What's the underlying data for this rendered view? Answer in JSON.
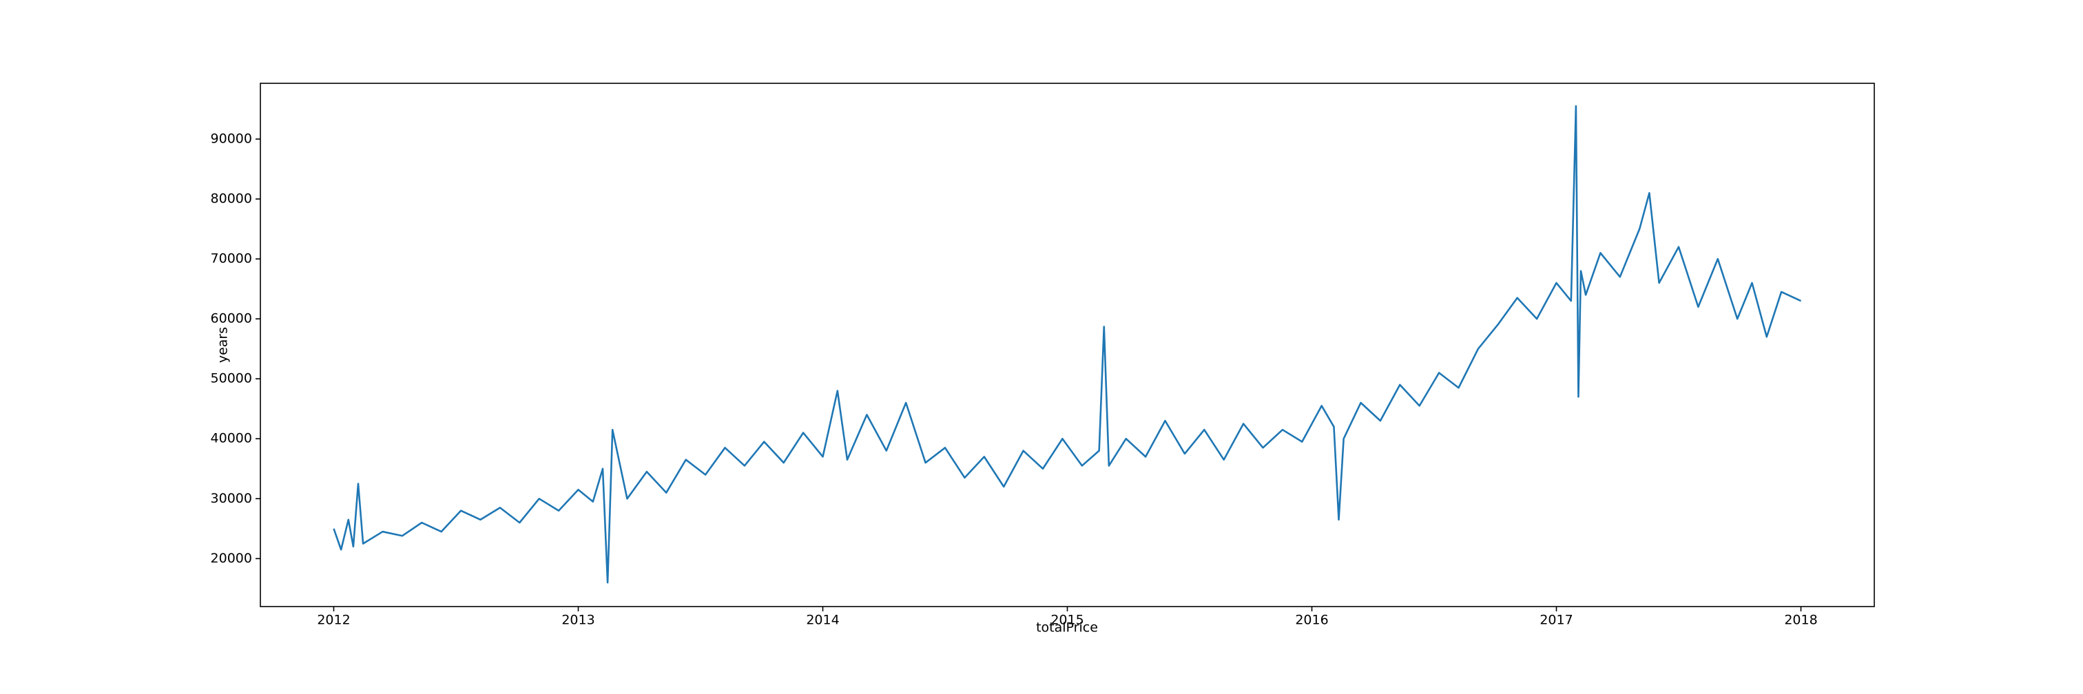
{
  "chart_data": {
    "type": "line",
    "xlabel": "totalPrice",
    "ylabel": "years",
    "x": [
      2012.0,
      2012.03,
      2012.06,
      2012.08,
      2012.1,
      2012.12,
      2012.2,
      2012.28,
      2012.36,
      2012.44,
      2012.52,
      2012.6,
      2012.68,
      2012.76,
      2012.84,
      2012.92,
      2013.0,
      2013.06,
      2013.1,
      2013.12,
      2013.14,
      2013.2,
      2013.28,
      2013.36,
      2013.44,
      2013.52,
      2013.6,
      2013.68,
      2013.76,
      2013.84,
      2013.92,
      2014.0,
      2014.06,
      2014.1,
      2014.18,
      2014.26,
      2014.34,
      2014.42,
      2014.5,
      2014.58,
      2014.66,
      2014.74,
      2014.82,
      2014.9,
      2014.98,
      2015.06,
      2015.13,
      2015.15,
      2015.17,
      2015.24,
      2015.32,
      2015.4,
      2015.48,
      2015.56,
      2015.64,
      2015.72,
      2015.8,
      2015.88,
      2015.96,
      2016.04,
      2016.09,
      2016.11,
      2016.13,
      2016.2,
      2016.28,
      2016.36,
      2016.44,
      2016.52,
      2016.6,
      2016.68,
      2016.76,
      2016.84,
      2016.92,
      2017.0,
      2017.06,
      2017.08,
      2017.09,
      2017.1,
      2017.12,
      2017.18,
      2017.26,
      2017.34,
      2017.38,
      2017.42,
      2017.5,
      2017.58,
      2017.66,
      2017.74,
      2017.8,
      2017.86,
      2017.92,
      2018.0
    ],
    "series": [
      {
        "color": "#1f77b4",
        "values": [
          25000,
          21500,
          26500,
          22000,
          32500,
          22500,
          24500,
          23800,
          26000,
          24500,
          28000,
          26500,
          28500,
          26000,
          30000,
          28000,
          31500,
          29500,
          35000,
          16000,
          41500,
          30000,
          34500,
          31000,
          36500,
          34000,
          38500,
          35500,
          39500,
          36000,
          41000,
          37000,
          48000,
          36500,
          44000,
          38000,
          46000,
          36000,
          38500,
          33500,
          37000,
          32000,
          38000,
          35000,
          40000,
          35500,
          38000,
          58700,
          35500,
          40000,
          37000,
          43000,
          37500,
          41500,
          36500,
          42500,
          38500,
          41500,
          39500,
          45500,
          42000,
          26500,
          40000,
          46000,
          43000,
          49000,
          45500,
          51000,
          48500,
          55000,
          59000,
          63500,
          60000,
          66000,
          63000,
          95500,
          47000,
          68000,
          64000,
          71000,
          67000,
          75000,
          81000,
          66000,
          72000,
          62000,
          70000,
          60000,
          66000,
          57000,
          64500,
          63000
        ]
      }
    ],
    "xlim": [
      2011.7,
      2018.3
    ],
    "xticks": [
      2012,
      2013,
      2014,
      2015,
      2016,
      2017,
      2018
    ],
    "ylim": [
      12000,
      99300
    ],
    "yticks": [
      20000,
      30000,
      40000,
      50000,
      60000,
      70000,
      80000,
      90000
    ]
  }
}
